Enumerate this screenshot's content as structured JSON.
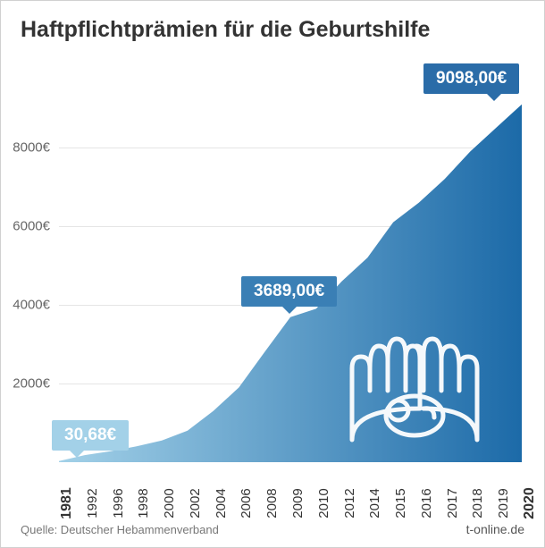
{
  "title": "Haftpflichtprämien für die Geburtshilfe",
  "source": "Quelle: Deutscher Hebammenverband",
  "brand": "t-online.de",
  "chart": {
    "type": "area",
    "ylim": [
      0,
      10000
    ],
    "yticks": [
      2000,
      4000,
      6000,
      8000
    ],
    "ytick_labels": [
      "2000€",
      "4000€",
      "6000€",
      "8000€"
    ],
    "gridline_color": "#e5e5e5",
    "gradient_start": "#a3d1e8",
    "gradient_end": "#1c6aa8",
    "background": "#ffffff",
    "x_labels": [
      "1981",
      "1992",
      "1996",
      "1998",
      "2000",
      "2002",
      "2004",
      "2006",
      "2008",
      "2009",
      "2010",
      "2012",
      "2014",
      "2015",
      "2016",
      "2017",
      "2018",
      "2019",
      "2020"
    ],
    "values": [
      30.68,
      180,
      280,
      400,
      550,
      800,
      1300,
      1900,
      2800,
      3689,
      3900,
      4600,
      5200,
      6100,
      6600,
      7200,
      7900,
      8500,
      9098
    ],
    "callouts": [
      {
        "label": "30,68€",
        "index": 0,
        "style": "light"
      },
      {
        "label": "3689,00€",
        "index": 9,
        "style": "mid"
      },
      {
        "label": "9098,00€",
        "index": 18,
        "style": "dark"
      }
    ],
    "x_bold_indices": [
      0,
      18
    ],
    "label_fontsize": 15,
    "title_fontsize": 25,
    "title_color": "#333333",
    "axis_label_color": "#666666"
  }
}
